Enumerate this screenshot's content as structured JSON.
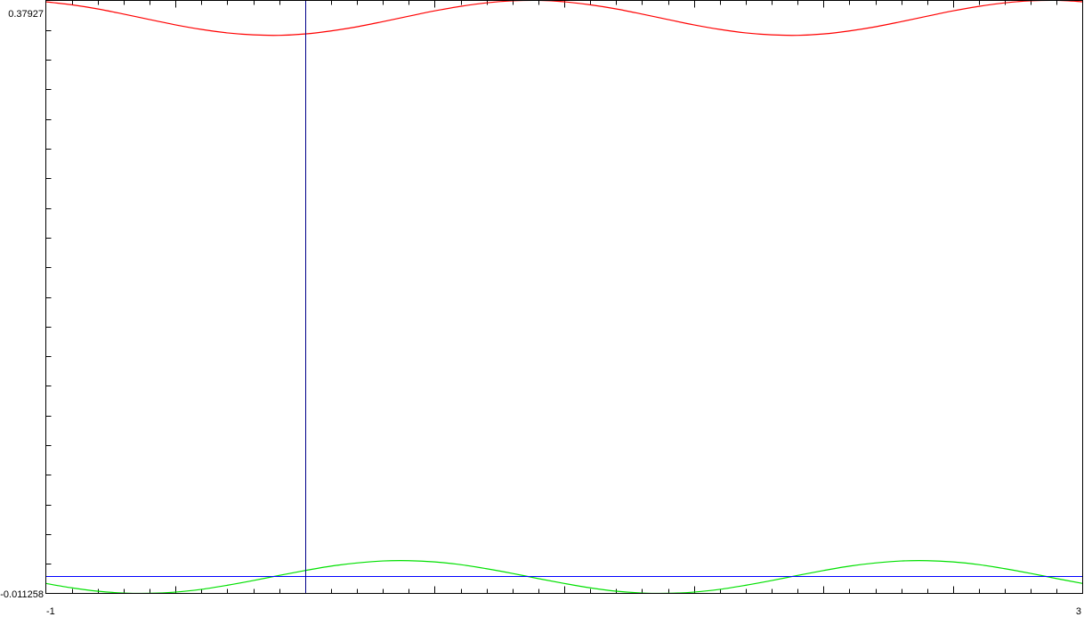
{
  "chart_data": {
    "type": "line",
    "title": "",
    "xlabel": "",
    "ylabel": "",
    "xlim": [
      -1,
      3
    ],
    "ylim": [
      -0.011258,
      0.37927
    ],
    "x_tick_labels": [
      "-1",
      "3"
    ],
    "y_tick_labels": [
      "-0.011258",
      "0.37927"
    ],
    "x_minor_tick_step": 0.1,
    "x_major_tick_step": 0.5,
    "y_tick_count": 20,
    "grid": false,
    "vertical_marker_x": 0,
    "x_start": -1,
    "x_step": 0.1,
    "series": [
      {
        "color": "#ff0000",
        "values": [
          0.3784,
          0.3764,
          0.3737,
          0.3703,
          0.3667,
          0.3632,
          0.3602,
          0.3579,
          0.3566,
          0.3563,
          0.3572,
          0.3592,
          0.3619,
          0.3653,
          0.3689,
          0.3724,
          0.3754,
          0.3777,
          0.379,
          0.3793,
          0.3784,
          0.3764,
          0.3737,
          0.3703,
          0.3667,
          0.3632,
          0.3602,
          0.3579,
          0.3566,
          0.3563,
          0.3572,
          0.3592,
          0.3619,
          0.3653,
          0.3689,
          0.3724,
          0.3754,
          0.3777,
          0.379,
          0.3793,
          0.3784
        ]
      },
      {
        "color": "#00e000",
        "values": [
          -0.0047,
          -0.0076,
          -0.0098,
          -0.011,
          -0.0112,
          -0.0104,
          -0.0086,
          -0.0059,
          -0.0028,
          0.0006,
          0.0038,
          0.0067,
          0.0088,
          0.0101,
          0.0103,
          0.0095,
          0.0077,
          0.005,
          0.0019,
          -0.0015,
          -0.0047,
          -0.0076,
          -0.0098,
          -0.011,
          -0.0112,
          -0.0104,
          -0.0086,
          -0.0059,
          -0.0028,
          0.0006,
          0.0038,
          0.0067,
          0.0088,
          0.0101,
          0.0103,
          0.0095,
          0.0077,
          0.005,
          0.0019,
          -0.0015,
          -0.0047
        ]
      },
      {
        "color": "#0000ff",
        "values": [
          0,
          0
        ]
      }
    ]
  }
}
